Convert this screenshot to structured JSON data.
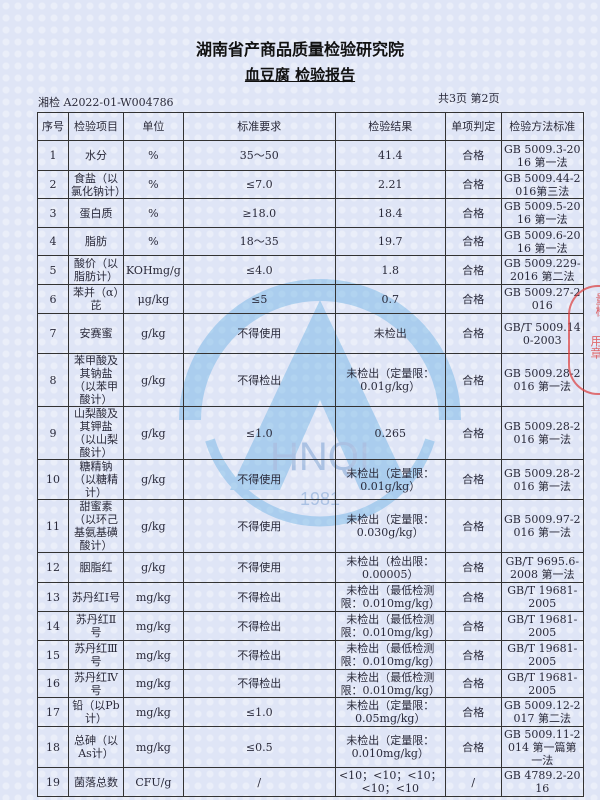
{
  "header": {
    "institute": "湖南省产商品质量检验研究院",
    "report_title": "血豆腐 检验报告",
    "report_no": "湘检  A2022-01-W004786",
    "page_info": "共3页  第2页"
  },
  "table": {
    "columns": [
      "序号",
      "检验项目",
      "单位",
      "标准要求",
      "检验结果",
      "单项判定",
      "检验方法标准"
    ],
    "rows": [
      [
        "1",
        "水分",
        "%",
        "35～50",
        "41.4",
        "合格",
        "GB 5009.3-2016 第一法"
      ],
      [
        "2",
        "食盐（以氯化钠计）",
        "%",
        "≤7.0",
        "2.21",
        "合格",
        "GB 5009.44-2016第三法"
      ],
      [
        "3",
        "蛋白质",
        "%",
        "≥18.0",
        "18.4",
        "合格",
        "GB 5009.5-2016 第一法"
      ],
      [
        "4",
        "脂肪",
        "%",
        "18～35",
        "19.7",
        "合格",
        "GB 5009.6-2016 第一法"
      ],
      [
        "5",
        "酸价（以脂肪计）",
        "KOHmg/g",
        "≤4.0",
        "1.8",
        "合格",
        "GB 5009.229-2016 第二法"
      ],
      [
        "6",
        "苯并（α）芘",
        "μg/kg",
        "≤5",
        "0.7",
        "合格",
        "GB 5009.27-2016"
      ],
      [
        "7",
        "安赛蜜",
        "g/kg",
        "不得使用",
        "未检出",
        "合格",
        "GB/T 5009.140-2003"
      ],
      [
        "8",
        "苯甲酸及其钠盐（以苯甲酸计）",
        "g/kg",
        "不得检出",
        "未检出（定量限：0.01g/kg）",
        "合格",
        "GB 5009.28-2016 第一法"
      ],
      [
        "9",
        "山梨酸及其钾盐（以山梨酸计）",
        "g/kg",
        "≤1.0",
        "0.265",
        "合格",
        "GB 5009.28-2016 第一法"
      ],
      [
        "10",
        "糖精钠（以糖精计）",
        "g/kg",
        "不得使用",
        "未检出（定量限：0.01g/kg）",
        "合格",
        "GB 5009.28-2016 第一法"
      ],
      [
        "11",
        "甜蜜素（以环己基氨基磺酸计）",
        "g/kg",
        "不得使用",
        "未检出（定量限：0.030g/kg）",
        "合格",
        "GB 5009.97-2016 第一法"
      ],
      [
        "12",
        "胭脂红",
        "g/kg",
        "不得使用",
        "未检出（检出限：0.00005）",
        "合格",
        "GB/T 9695.6-2008 第一法"
      ],
      [
        "13",
        "苏丹红Ⅰ号",
        "mg/kg",
        "不得检出",
        "未检出（最低检测限：0.010mg/kg）",
        "合格",
        "GB/T 19681-2005"
      ],
      [
        "14",
        "苏丹红Ⅱ号",
        "mg/kg",
        "不得检出",
        "未检出（最低检测限：0.010mg/kg）",
        "合格",
        "GB/T 19681-2005"
      ],
      [
        "15",
        "苏丹红Ⅲ号",
        "mg/kg",
        "不得检出",
        "未检出（最低检测限：0.010mg/kg）",
        "合格",
        "GB/T 19681-2005"
      ],
      [
        "16",
        "苏丹红Ⅳ号",
        "mg/kg",
        "不得检出",
        "未检出（最低检测限：0.010mg/kg）",
        "合格",
        "GB/T 19681-2005"
      ],
      [
        "17",
        "铅（以Pb计）",
        "mg/kg",
        "≤1.0",
        "未检出（定量限：0.05mg/kg）",
        "合格",
        "GB 5009.12-2017 第二法"
      ],
      [
        "18",
        "总砷（以As计）",
        "mg/kg",
        "≤0.5",
        "未检出（定量限：0.010mg/kg）",
        "合格",
        "GB 5009.11-2014 第一篇第一法"
      ],
      [
        "19",
        "菌落总数",
        "CFU/g",
        "/",
        "<10；<10；<10；<10；<10",
        "/",
        "GB 4789.2-2016"
      ]
    ]
  },
  "watermark": {
    "text": "HNQI",
    "year": "1981"
  },
  "stamp": {
    "text1": "量检",
    "text2": "用章"
  },
  "colors": {
    "background": "#dfe5f6",
    "watermark": "#4aa3e0",
    "stamp": "#dc3c3c"
  }
}
